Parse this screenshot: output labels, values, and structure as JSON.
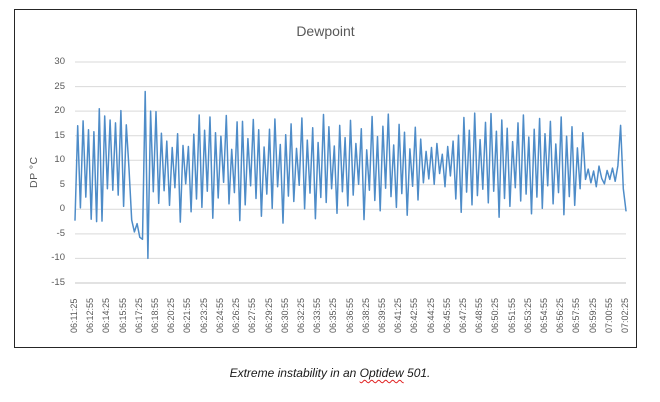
{
  "caption": {
    "prefix": "Extreme instability in an ",
    "word": "Optidew",
    "suffix": " 501."
  },
  "colors": {
    "line": "#4E8CC8",
    "grid": "#D9D9D9",
    "axis_line": "#C6C6C6",
    "tick_label": "#595959",
    "title": "#595959",
    "spellcheck_red": "#E02020",
    "frame_border": "#262626"
  },
  "chart_data": {
    "type": "line",
    "title": "Dewpoint",
    "xlabel": "",
    "ylabel": "DP °C",
    "ylim": [
      -15,
      30
    ],
    "grid": "horizontal",
    "legend": "none",
    "y_ticks": [
      30,
      25,
      20,
      15,
      10,
      5,
      0,
      -5,
      -10,
      -15
    ],
    "x_tick_labels": [
      "06:11:25",
      "06:12:55",
      "06:14:25",
      "06:15:55",
      "06:17:25",
      "06:18:55",
      "06:20:25",
      "06:21:55",
      "06:23:25",
      "06:24:55",
      "06:26:25",
      "06:27:55",
      "06:29:25",
      "06:30:55",
      "06:32:25",
      "06:33:55",
      "06:35:25",
      "06:36:55",
      "06:38:25",
      "06:39:55",
      "06:41:25",
      "06:42:55",
      "06:44:25",
      "06:45:55",
      "06:47:25",
      "06:48:55",
      "06:50:25",
      "06:51:55",
      "06:53:25",
      "06:54:55",
      "06:56:25",
      "06:57:55",
      "06:59:25",
      "07:00:55",
      "07:02:25"
    ],
    "x_tick_every": 6,
    "sample_interval_seconds": 15,
    "series": [
      {
        "name": "Dewpoint",
        "values": [
          -2.2,
          17,
          0.3,
          18,
          2.5,
          16.2,
          -2,
          15.8,
          -2.5,
          20.5,
          -2.4,
          19,
          4.2,
          18.2,
          3.9,
          17.6,
          2.9,
          20.1,
          0.6,
          17.2,
          8.3,
          -2.2,
          -4.6,
          -2.9,
          -5.7,
          -6.1,
          24,
          -10,
          20,
          3.6,
          19.9,
          1.2,
          15.5,
          3.8,
          13.9,
          0.8,
          12.6,
          4.4,
          15.4,
          -2.6,
          13,
          5.2,
          12.8,
          -0.5,
          15.3,
          2.1,
          19.2,
          0.4,
          16.1,
          3.7,
          18.8,
          -1.8,
          15.6,
          2.3,
          14.9,
          5.5,
          19.1,
          1.1,
          12.2,
          3.4,
          17.8,
          -2.3,
          17.9,
          0.9,
          14.4,
          4.8,
          18.3,
          2.2,
          16.2,
          -1.4,
          12.7,
          3.1,
          16.3,
          0.2,
          18.4,
          4.6,
          13.2,
          -2.8,
          15.2,
          2.7,
          17.4,
          1.6,
          12.4,
          4.9,
          18.6,
          0.1,
          14.1,
          3.3,
          16.6,
          -1.9,
          13.6,
          2.4,
          19.3,
          1.4,
          16.8,
          4.2,
          12.9,
          -0.8,
          17.1,
          3.6,
          14.6,
          0.7,
          18.1,
          2.9,
          13.4,
          5.1,
          16.4,
          -2.1,
          12.1,
          3.9,
          18.9,
          1.8,
          14.8,
          -0.3,
          16.9,
          4.3,
          19.4,
          2.6,
          13.1,
          0.4,
          17.3,
          3.2,
          15.7,
          -1.2,
          12.3,
          4.7,
          16.7,
          1.9,
          14.3,
          5.4,
          11.8,
          6.2,
          12.6,
          5.1,
          13.4,
          7.3,
          11.2,
          4.6,
          12.8,
          6.8,
          13.9,
          2.1,
          15.1,
          -0.6,
          18.7,
          3.5,
          16.1,
          0.9,
          19.6,
          2.8,
          14.2,
          4.1,
          17.7,
          1.3,
          19.5,
          3.7,
          15.9,
          -1.6,
          18.2,
          2.2,
          16.5,
          0.6,
          13.8,
          4.4,
          17.6,
          1.7,
          19.2,
          3.1,
          14.7,
          -0.9,
          16.3,
          2.5,
          18.5,
          0.2,
          15.4,
          4.8,
          17.9,
          1.1,
          13.3,
          3.4,
          18.8,
          -1.1,
          14.9,
          2.6,
          16.8,
          0.8,
          12.5,
          4.2,
          15.6,
          6.1,
          8.2,
          5.4,
          7.8,
          4.6,
          8.8,
          6.3,
          5.2,
          7.9,
          6.1,
          8.4,
          5.7,
          8.9,
          17.1,
          4.2,
          -0.3
        ]
      }
    ]
  }
}
